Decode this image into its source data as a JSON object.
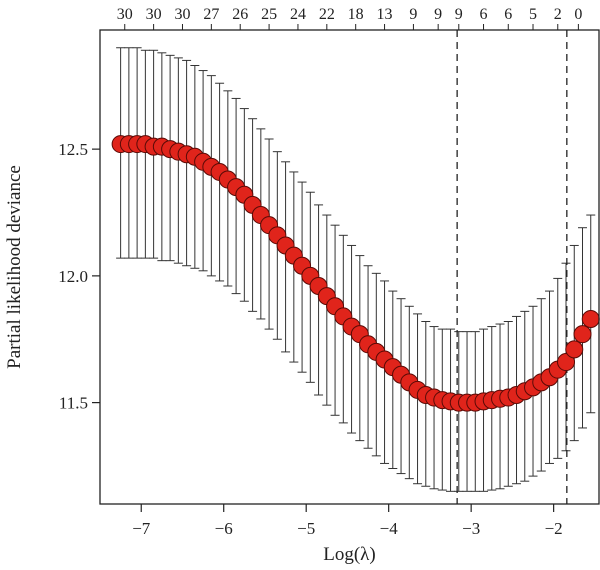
{
  "chart_data": {
    "type": "scatter",
    "xlabel": "Log(λ)",
    "ylabel": "Partial likelihood deviance",
    "xlim": [
      -7.5,
      -1.45
    ],
    "ylim": [
      11.1,
      12.97
    ],
    "xticks": [
      -7,
      -6,
      -5,
      -4,
      -3,
      -2
    ],
    "xtick_labels": [
      "−7",
      "−6",
      "−5",
      "−4",
      "−3",
      "−2"
    ],
    "yticks": [
      11.5,
      12.0,
      12.5
    ],
    "ytick_labels": [
      "11.5",
      "12.0",
      "12.5"
    ],
    "top_axis": {
      "ticks": [
        -7.2,
        -6.85,
        -6.5,
        -6.15,
        -5.8,
        -5.45,
        -5.1,
        -4.75,
        -4.4,
        -4.05,
        -3.7,
        -3.4,
        -3.15,
        -2.85,
        -2.55,
        -2.25,
        -1.95,
        -1.7
      ],
      "labels": [
        "30",
        "30",
        "30",
        "27",
        "26",
        "25",
        "24",
        "22",
        "18",
        "13",
        "9",
        "9",
        "9",
        "6",
        "6",
        "5",
        "2",
        "0"
      ]
    },
    "vlines": [
      -3.17,
      -1.84
    ],
    "grid": false,
    "point_color": "#e0241b",
    "x": [
      -7.25,
      -7.15,
      -7.05,
      -6.95,
      -6.85,
      -6.75,
      -6.65,
      -6.55,
      -6.45,
      -6.35,
      -6.25,
      -6.15,
      -6.05,
      -5.95,
      -5.85,
      -5.75,
      -5.65,
      -5.55,
      -5.45,
      -5.35,
      -5.25,
      -5.15,
      -5.05,
      -4.95,
      -4.85,
      -4.75,
      -4.65,
      -4.55,
      -4.45,
      -4.35,
      -4.25,
      -4.15,
      -4.05,
      -3.95,
      -3.85,
      -3.75,
      -3.65,
      -3.55,
      -3.45,
      -3.35,
      -3.25,
      -3.15,
      -3.05,
      -2.95,
      -2.85,
      -2.75,
      -2.65,
      -2.55,
      -2.45,
      -2.35,
      -2.25,
      -2.15,
      -2.05,
      -1.95,
      -1.85,
      -1.75,
      -1.65,
      -1.55
    ],
    "y": [
      12.52,
      12.52,
      12.52,
      12.52,
      12.51,
      12.51,
      12.5,
      12.49,
      12.48,
      12.47,
      12.45,
      12.43,
      12.41,
      12.38,
      12.35,
      12.32,
      12.28,
      12.24,
      12.2,
      12.16,
      12.12,
      12.08,
      12.04,
      12.0,
      11.96,
      11.92,
      11.88,
      11.84,
      11.8,
      11.77,
      11.73,
      11.7,
      11.67,
      11.64,
      11.61,
      11.58,
      11.55,
      11.53,
      11.52,
      11.51,
      11.505,
      11.5,
      11.5,
      11.5,
      11.505,
      11.51,
      11.515,
      11.52,
      11.53,
      11.545,
      11.56,
      11.58,
      11.6,
      11.63,
      11.66,
      11.71,
      11.77,
      11.83
    ],
    "error_upper": [
      12.9,
      12.9,
      12.9,
      12.89,
      12.89,
      12.88,
      12.87,
      12.86,
      12.85,
      12.83,
      12.81,
      12.79,
      12.76,
      12.73,
      12.7,
      12.66,
      12.62,
      12.58,
      12.54,
      12.49,
      12.45,
      12.41,
      12.37,
      12.33,
      12.28,
      12.24,
      12.2,
      12.16,
      12.12,
      12.08,
      12.04,
      12.01,
      11.98,
      11.94,
      11.91,
      11.88,
      11.85,
      11.82,
      11.8,
      11.79,
      11.79,
      11.78,
      11.78,
      11.78,
      11.79,
      11.8,
      11.81,
      11.82,
      11.84,
      11.86,
      11.88,
      11.91,
      11.94,
      11.99,
      12.05,
      12.12,
      12.19,
      12.24
    ],
    "error_lower": [
      12.07,
      12.07,
      12.07,
      12.07,
      12.07,
      12.06,
      12.06,
      12.05,
      12.04,
      12.03,
      12.02,
      12.0,
      11.98,
      11.96,
      11.93,
      11.9,
      11.86,
      11.83,
      11.79,
      11.75,
      11.7,
      11.66,
      11.62,
      11.58,
      11.53,
      11.49,
      11.45,
      11.42,
      11.38,
      11.35,
      11.32,
      11.29,
      11.26,
      11.24,
      11.22,
      11.2,
      11.18,
      11.17,
      11.16,
      11.155,
      11.15,
      11.15,
      11.15,
      11.15,
      11.15,
      11.155,
      11.16,
      11.17,
      11.18,
      11.19,
      11.21,
      11.23,
      11.26,
      11.28,
      11.31,
      11.35,
      11.4,
      11.46
    ]
  }
}
